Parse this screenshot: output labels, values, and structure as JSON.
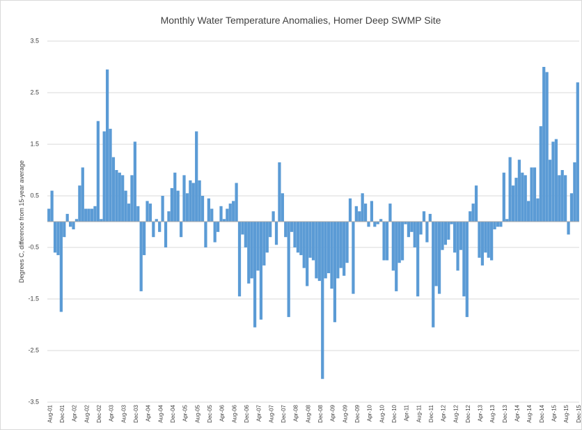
{
  "chart_data": {
    "type": "bar",
    "title": "Monthly Water Temperature Anomalies, Homer Deep SWMP Site",
    "ylabel": "Degrees C, difference from 15-year average",
    "color": "#5b9bd5",
    "grid": true,
    "ylim": [
      -3.5,
      3.5
    ],
    "yticks": [
      3.5,
      2.5,
      1.5,
      0.5,
      -0.5,
      -1.5,
      -2.5,
      -3.5
    ],
    "categories": [
      "Aug-01",
      null,
      null,
      null,
      "Dec-01",
      null,
      null,
      null,
      "Apr-02",
      null,
      null,
      null,
      "Aug-02",
      null,
      null,
      null,
      "Dec-02",
      null,
      null,
      null,
      "Apr-03",
      null,
      null,
      null,
      "Aug-03",
      null,
      null,
      null,
      "Dec-03",
      null,
      null,
      null,
      "Apr-04",
      null,
      null,
      null,
      "Aug-04",
      null,
      null,
      null,
      "Dec-04",
      null,
      null,
      null,
      "Apr-05",
      null,
      null,
      null,
      "Aug-05",
      null,
      null,
      null,
      "Dec-05",
      null,
      null,
      null,
      "Apr-06",
      null,
      null,
      null,
      "Aug-06",
      null,
      null,
      null,
      "Dec-06",
      null,
      null,
      null,
      "Apr-07",
      null,
      null,
      null,
      "Aug-07",
      null,
      null,
      null,
      "Dec-07",
      null,
      null,
      null,
      "Apr-08",
      null,
      null,
      null,
      "Aug-08",
      null,
      null,
      null,
      "Dec-08",
      null,
      null,
      null,
      "Apr-09",
      null,
      null,
      null,
      "Aug-09",
      null,
      null,
      null,
      "Dec-09",
      null,
      null,
      null,
      "Apr-10",
      null,
      null,
      null,
      "Aug-10",
      null,
      null,
      null,
      "Dec-10",
      null,
      null,
      null,
      "Apr-11",
      null,
      null,
      null,
      "Aug-11",
      null,
      null,
      null,
      "Dec-11",
      null,
      null,
      null,
      "Apr-12",
      null,
      null,
      null,
      "Aug-12",
      null,
      null,
      null,
      "Dec-12",
      null,
      null,
      null,
      "Apr-13",
      null,
      null,
      null,
      "Aug-13",
      null,
      null,
      null,
      "Dec-13",
      null,
      null,
      null,
      "Apr-14",
      null,
      null,
      null,
      "Aug-14",
      null,
      null,
      null,
      "Dec-14",
      null,
      null,
      null,
      "Apr-15",
      null,
      null,
      null,
      "Aug-15",
      null,
      null,
      null,
      "Dec-15"
    ],
    "values": [
      0.25,
      0.6,
      -0.6,
      -0.65,
      -1.75,
      -0.3,
      0.15,
      -0.1,
      -0.15,
      0.05,
      0.7,
      1.05,
      0.25,
      0.25,
      0.25,
      0.3,
      1.95,
      0.05,
      1.75,
      2.95,
      1.8,
      1.25,
      1.0,
      0.95,
      0.9,
      0.6,
      0.35,
      0.9,
      1.55,
      0.3,
      -1.35,
      -0.65,
      0.4,
      0.35,
      -0.3,
      0.05,
      -0.2,
      0.5,
      -0.5,
      0.2,
      0.65,
      0.95,
      0.6,
      -0.3,
      0.9,
      0.55,
      0.8,
      0.75,
      1.75,
      0.8,
      0.5,
      -0.5,
      0.45,
      0.25,
      -0.4,
      -0.2,
      0.3,
      0.05,
      0.25,
      0.35,
      0.4,
      0.75,
      -1.45,
      -0.25,
      -0.5,
      -1.2,
      -1.1,
      -2.05,
      -0.95,
      -1.9,
      -0.85,
      -0.6,
      -0.3,
      0.2,
      -0.45,
      1.15,
      0.55,
      -0.3,
      -1.85,
      -0.2,
      -0.5,
      -0.6,
      -0.65,
      -0.9,
      -1.25,
      -0.7,
      -0.75,
      -1.1,
      -1.15,
      -3.05,
      -1.1,
      -1.0,
      -1.3,
      -1.95,
      -1.1,
      -0.9,
      -1.05,
      -0.8,
      0.45,
      -1.4,
      0.3,
      0.2,
      0.55,
      0.35,
      -0.1,
      0.4,
      -0.1,
      -0.05,
      0.05,
      -0.75,
      -0.75,
      0.35,
      -0.95,
      -1.35,
      -0.8,
      -0.75,
      -0.05,
      -0.3,
      -0.2,
      -0.5,
      -1.45,
      -0.25,
      0.2,
      -0.4,
      0.15,
      -2.05,
      -1.25,
      -1.4,
      -0.55,
      -0.45,
      -0.35,
      -0.05,
      -0.6,
      -0.95,
      -0.55,
      -1.45,
      -1.85,
      0.2,
      0.35,
      0.7,
      -0.7,
      -0.85,
      -0.6,
      -0.7,
      -0.75,
      -0.15,
      -0.1,
      -0.1,
      0.95,
      0.05,
      1.25,
      0.7,
      0.85,
      1.2,
      0.95,
      0.9,
      0.4,
      1.05,
      1.05,
      0.45,
      1.85,
      3.0,
      2.9,
      1.2,
      1.55,
      1.6,
      0.9,
      1.0,
      0.9,
      -0.25,
      0.55,
      1.15,
      2.7
    ]
  }
}
